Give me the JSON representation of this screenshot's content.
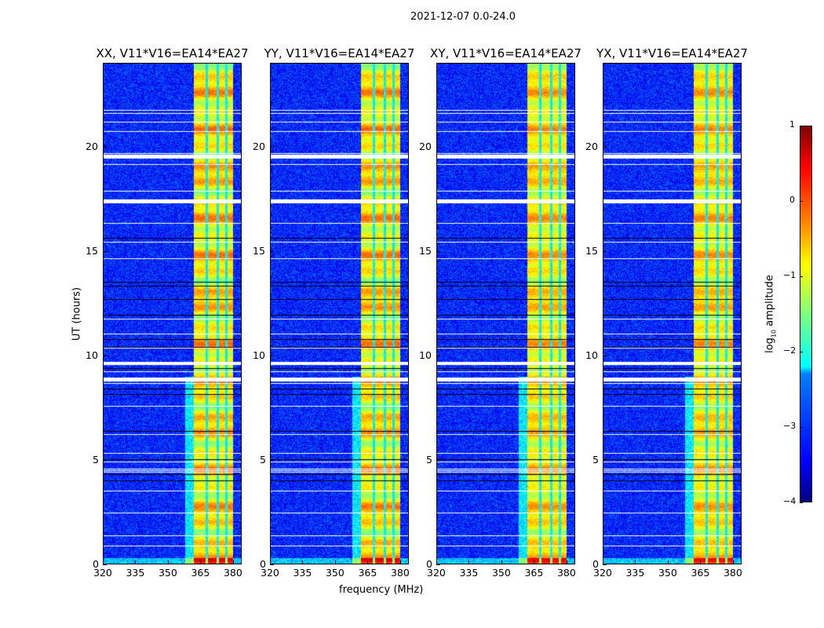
{
  "chart_data": {
    "type": "heatmap",
    "title": "2021-12-07 0.0-24.0",
    "xlabel": "frequency (MHz)",
    "ylabel": "UT (hours)",
    "xlim": [
      320,
      384
    ],
    "ylim": [
      0,
      24
    ],
    "xticks": [
      "320",
      "335",
      "350",
      "365",
      "380"
    ],
    "xtick_values": [
      320,
      335,
      350,
      365,
      380
    ],
    "yticks": [
      "0",
      "5",
      "10",
      "15",
      "20"
    ],
    "ytick_values": [
      0,
      5,
      10,
      15,
      20
    ],
    "panels": [
      {
        "title": "XX, V11*V16=EA14*EA27"
      },
      {
        "title": "YY, V11*V16=EA14*EA27"
      },
      {
        "title": "XY, V11*V16=EA14*EA27"
      },
      {
        "title": "YX, V11*V16=EA14*EA27"
      }
    ],
    "colorbar": {
      "label_prefix": "log",
      "label_sub": "10",
      "label_suffix": " amplitude",
      "range": [
        -4,
        1
      ],
      "ticks": [
        "1",
        "0",
        "−1",
        "−2",
        "−3",
        "−4"
      ],
      "tick_values": [
        1,
        0,
        -1,
        -2,
        -3,
        -4
      ],
      "colormap": "jet"
    },
    "features": {
      "background_level": -3.2,
      "bright_band_mhz": [
        362,
        380
      ],
      "bright_band_level": -0.8,
      "band_gaps_mhz": [
        368,
        373,
        377
      ],
      "flagged_hours": [
        [
          19.45,
          19.65
        ],
        [
          17.3,
          17.5
        ],
        [
          8.75,
          8.95
        ],
        [
          9.55,
          9.7
        ]
      ]
    }
  }
}
